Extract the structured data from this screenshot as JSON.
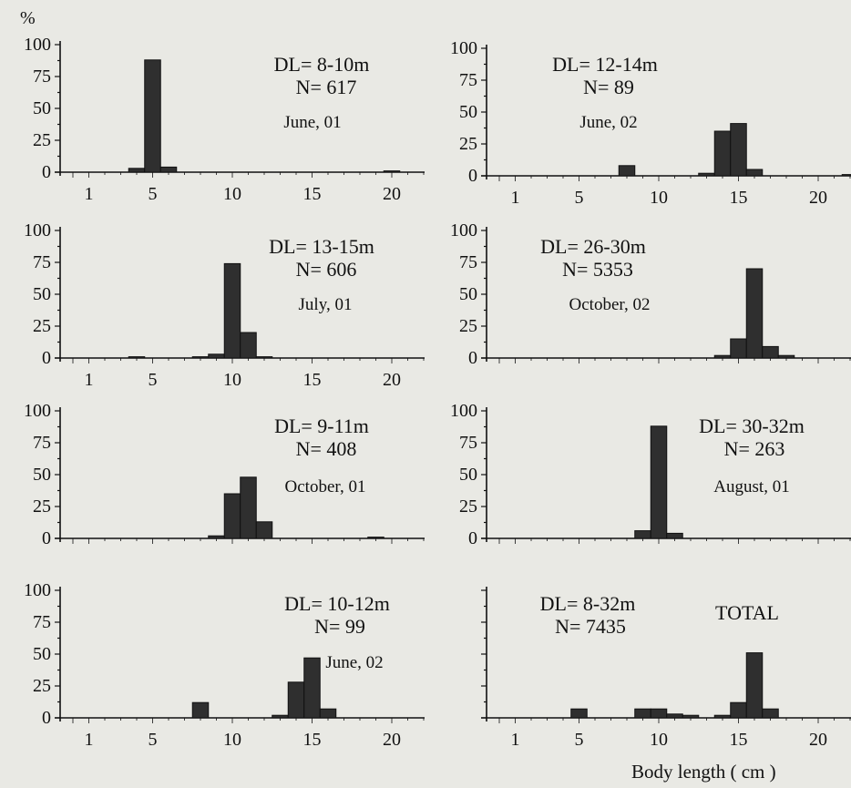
{
  "figure": {
    "y_unit": "%",
    "x_axis_title": "Body length ( cm )"
  },
  "chart_data": [
    {
      "type": "bar",
      "x_ticks": [
        1,
        5,
        10,
        15,
        20
      ],
      "y_ticks": [
        0,
        25,
        50,
        75,
        100
      ],
      "ylim": [
        0,
        100
      ],
      "xlim": [
        0,
        22
      ],
      "bars": [
        {
          "x": 4,
          "y": 3
        },
        {
          "x": 5,
          "y": 88
        },
        {
          "x": 6,
          "y": 4
        },
        {
          "x": 20,
          "y": 1
        }
      ],
      "annotations": [
        "DL= 8-10m",
        "N= 617",
        "June, 01"
      ]
    },
    {
      "type": "bar",
      "x_ticks": [
        1,
        5,
        10,
        15,
        20
      ],
      "y_ticks": [
        0,
        25,
        50,
        75,
        100
      ],
      "ylim": [
        0,
        100
      ],
      "xlim": [
        0,
        22
      ],
      "bars": [
        {
          "x": 8,
          "y": 8
        },
        {
          "x": 13,
          "y": 2
        },
        {
          "x": 14,
          "y": 35
        },
        {
          "x": 15,
          "y": 41
        },
        {
          "x": 16,
          "y": 5
        },
        {
          "x": 22,
          "y": 1
        }
      ],
      "annotations": [
        "DL= 12-14m",
        "N= 89",
        "June, 02"
      ]
    },
    {
      "type": "bar",
      "x_ticks": [
        1,
        5,
        10,
        15,
        20
      ],
      "y_ticks": [
        0,
        25,
        50,
        75,
        100
      ],
      "ylim": [
        0,
        100
      ],
      "xlim": [
        0,
        22
      ],
      "bars": [
        {
          "x": 4,
          "y": 1
        },
        {
          "x": 8,
          "y": 1
        },
        {
          "x": 9,
          "y": 3
        },
        {
          "x": 10,
          "y": 74
        },
        {
          "x": 11,
          "y": 20
        },
        {
          "x": 12,
          "y": 1
        }
      ],
      "annotations": [
        "DL= 13-15m",
        "N= 606",
        "July, 01"
      ]
    },
    {
      "type": "bar",
      "x_ticks": [],
      "y_ticks": [
        0,
        25,
        50,
        75,
        100
      ],
      "ylim": [
        0,
        100
      ],
      "xlim": [
        0,
        22
      ],
      "bars": [
        {
          "x": 14,
          "y": 2
        },
        {
          "x": 15,
          "y": 15
        },
        {
          "x": 16,
          "y": 70
        },
        {
          "x": 17,
          "y": 9
        },
        {
          "x": 18,
          "y": 2
        }
      ],
      "annotations": [
        "DL= 26-30m",
        "N= 5353",
        "October, 02"
      ]
    },
    {
      "type": "bar",
      "x_ticks": [],
      "y_ticks": [
        0,
        25,
        50,
        75,
        100
      ],
      "ylim": [
        0,
        100
      ],
      "xlim": [
        0,
        22
      ],
      "bars": [
        {
          "x": 9,
          "y": 2
        },
        {
          "x": 10,
          "y": 35
        },
        {
          "x": 11,
          "y": 48
        },
        {
          "x": 12,
          "y": 13
        },
        {
          "x": 19,
          "y": 1
        }
      ],
      "annotations": [
        "DL= 9-11m",
        "N= 408",
        "October, 01"
      ]
    },
    {
      "type": "bar",
      "x_ticks": [],
      "y_ticks": [
        0,
        25,
        50,
        75,
        100
      ],
      "ylim": [
        0,
        100
      ],
      "xlim": [
        0,
        22
      ],
      "bars": [
        {
          "x": 9,
          "y": 6
        },
        {
          "x": 10,
          "y": 88
        },
        {
          "x": 11,
          "y": 4
        }
      ],
      "annotations": [
        "DL= 30-32m",
        "N= 263",
        "August, 01"
      ]
    },
    {
      "type": "bar",
      "x_ticks": [
        1,
        5,
        10,
        15,
        20
      ],
      "y_ticks": [
        0,
        25,
        50,
        75,
        100
      ],
      "ylim": [
        0,
        100
      ],
      "xlim": [
        0,
        22
      ],
      "bars": [
        {
          "x": 8,
          "y": 12
        },
        {
          "x": 13,
          "y": 2
        },
        {
          "x": 14,
          "y": 28
        },
        {
          "x": 15,
          "y": 47
        },
        {
          "x": 16,
          "y": 7
        }
      ],
      "annotations": [
        "DL= 10-12m",
        "N= 99",
        "June, 02"
      ]
    },
    {
      "type": "bar",
      "x_ticks": [
        1,
        5,
        10,
        15,
        20
      ],
      "y_ticks": [],
      "ylim": [
        0,
        100
      ],
      "xlim": [
        0,
        22
      ],
      "bars": [
        {
          "x": 5,
          "y": 7
        },
        {
          "x": 9,
          "y": 7
        },
        {
          "x": 10,
          "y": 7
        },
        {
          "x": 11,
          "y": 3
        },
        {
          "x": 12,
          "y": 2
        },
        {
          "x": 14,
          "y": 2
        },
        {
          "x": 15,
          "y": 12
        },
        {
          "x": 16,
          "y": 51
        },
        {
          "x": 17,
          "y": 7
        }
      ],
      "annotations": [
        "DL= 8-32m",
        "N= 7435",
        "TOTAL"
      ]
    }
  ]
}
